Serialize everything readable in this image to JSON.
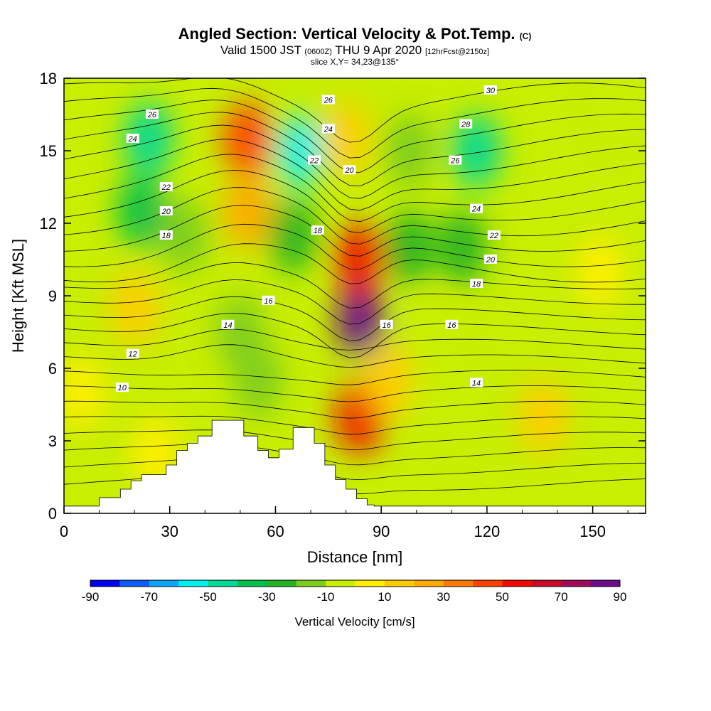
{
  "header": {
    "title": "Angled Section: Vertical Velocity & Pot.Temp.",
    "title_unit": "(C)",
    "valid_prefix": "Valid 1500 JST",
    "valid_zulu": "(0600Z)",
    "valid_date": "THU 9 Apr 2020",
    "forecast": "[12hrFcst@2150z]",
    "slice": "slice X,Y= 34,23@135°"
  },
  "colors": {
    "scale": [
      "#0000f0",
      "#0c5cff",
      "#0aa4ff",
      "#00f0f0",
      "#00d896",
      "#00c04c",
      "#22b222",
      "#7ccc1c",
      "#c8ee00",
      "#ffee00",
      "#ffcc00",
      "#ffaa00",
      "#ff7800",
      "#ff4200",
      "#f00a00",
      "#c80a28",
      "#a00a5a",
      "#6e0a8c"
    ],
    "terrain": "#ffffff",
    "contour": "#000000"
  },
  "chart_data": {
    "type": "heatmap",
    "xlabel": "Distance [nm]",
    "ylabel": "Height [Kft MSL]",
    "xlim": [
      0,
      165
    ],
    "ylim": [
      0,
      18
    ],
    "xticks": [
      "0",
      "30",
      "60",
      "90",
      "120",
      "150"
    ],
    "xtick_values": [
      0,
      30,
      60,
      90,
      120,
      150
    ],
    "yticks": [
      "0",
      "3",
      "6",
      "9",
      "12",
      "15",
      "18"
    ],
    "ytick_values": [
      0,
      3,
      6,
      9,
      12,
      15,
      18
    ],
    "colorbar": {
      "label": "Vertical Velocity [cm/s]",
      "min": -90,
      "max": 90,
      "step": 10,
      "tick_labels": [
        "-90",
        "-70",
        "-50",
        "-30",
        "-10",
        "10",
        "30",
        "50",
        "70",
        "90"
      ],
      "tick_values": [
        -90,
        -70,
        -50,
        -30,
        -10,
        10,
        30,
        50,
        70,
        90
      ]
    },
    "terrain_profile": {
      "x": [
        0,
        10,
        10,
        16,
        16,
        19,
        19,
        22,
        22,
        29,
        29,
        32,
        32,
        35,
        35,
        38,
        38,
        42,
        42,
        51,
        51,
        55,
        55,
        58,
        58,
        61,
        61,
        65,
        65,
        71,
        71,
        74,
        74,
        77,
        77,
        80,
        80,
        83,
        83,
        86,
        86,
        88,
        88,
        165
      ],
      "y": [
        0.3,
        0.3,
        0.65,
        0.65,
        1.0,
        1.0,
        1.35,
        1.35,
        1.6,
        1.6,
        2.0,
        2.0,
        2.6,
        2.6,
        2.9,
        2.9,
        3.2,
        3.2,
        3.85,
        3.85,
        3.2,
        3.2,
        2.6,
        2.6,
        2.3,
        2.3,
        2.65,
        2.65,
        3.55,
        3.55,
        2.9,
        2.9,
        2.0,
        2.0,
        1.4,
        1.4,
        1.0,
        1.0,
        0.6,
        0.6,
        0.35,
        0.35,
        0.3,
        0.3
      ]
    },
    "velocity_cells": [
      {
        "x": 24,
        "y": 15.5,
        "value": -45
      },
      {
        "x": 22,
        "y": 12.5,
        "value": -35
      },
      {
        "x": 34,
        "y": 11.5,
        "value": -15
      },
      {
        "x": 52,
        "y": 15.5,
        "value": 40
      },
      {
        "x": 52,
        "y": 12.5,
        "value": 25
      },
      {
        "x": 67,
        "y": 15,
        "value": -55
      },
      {
        "x": 65,
        "y": 11.5,
        "value": -25
      },
      {
        "x": 84,
        "y": 8,
        "value": 85
      },
      {
        "x": 84,
        "y": 10.5,
        "value": 55
      },
      {
        "x": 84,
        "y": 4,
        "value": 55
      },
      {
        "x": 80,
        "y": 15.5,
        "value": 15
      },
      {
        "x": 98,
        "y": 15,
        "value": -15
      },
      {
        "x": 98,
        "y": 11,
        "value": -25
      },
      {
        "x": 117,
        "y": 15,
        "value": -45
      },
      {
        "x": 113,
        "y": 11,
        "value": -25
      },
      {
        "x": 55,
        "y": 5.5,
        "value": -20
      },
      {
        "x": 50,
        "y": 7.5,
        "value": -15
      },
      {
        "x": 92,
        "y": 5.5,
        "value": 15
      },
      {
        "x": 104,
        "y": 7.5,
        "value": -10
      },
      {
        "x": 112,
        "y": 4.5,
        "value": -5
      },
      {
        "x": 136,
        "y": 4,
        "value": 15
      },
      {
        "x": 152,
        "y": 10,
        "value": 5
      },
      {
        "x": 158,
        "y": 17,
        "value": -5
      },
      {
        "x": 20,
        "y": 8.5,
        "value": 15
      },
      {
        "x": 5,
        "y": 5,
        "value": 5
      },
      {
        "x": 26,
        "y": 2.5,
        "value": 5
      }
    ],
    "contour_labels": [
      {
        "x": 25,
        "y": 16.5,
        "text": "26"
      },
      {
        "x": 19.5,
        "y": 15.5,
        "text": "24"
      },
      {
        "x": 29,
        "y": 13.5,
        "text": "22"
      },
      {
        "x": 29,
        "y": 12.5,
        "text": "20"
      },
      {
        "x": 29,
        "y": 11.5,
        "text": "18"
      },
      {
        "x": 58,
        "y": 8.8,
        "text": "16"
      },
      {
        "x": 46.5,
        "y": 7.8,
        "text": "14"
      },
      {
        "x": 19.5,
        "y": 6.6,
        "text": "12"
      },
      {
        "x": 16.5,
        "y": 5.2,
        "text": "10"
      },
      {
        "x": 75,
        "y": 17.1,
        "text": "26"
      },
      {
        "x": 75,
        "y": 15.9,
        "text": "24"
      },
      {
        "x": 71,
        "y": 14.6,
        "text": "22"
      },
      {
        "x": 81,
        "y": 14.2,
        "text": "20"
      },
      {
        "x": 72,
        "y": 11.7,
        "text": "18"
      },
      {
        "x": 91.5,
        "y": 7.8,
        "text": "16"
      },
      {
        "x": 121,
        "y": 17.5,
        "text": "30"
      },
      {
        "x": 114,
        "y": 16.1,
        "text": "28"
      },
      {
        "x": 111,
        "y": 14.6,
        "text": "26"
      },
      {
        "x": 117,
        "y": 12.6,
        "text": "24"
      },
      {
        "x": 122,
        "y": 11.5,
        "text": "22"
      },
      {
        "x": 121,
        "y": 10.5,
        "text": "20"
      },
      {
        "x": 117,
        "y": 9.5,
        "text": "18"
      },
      {
        "x": 110,
        "y": 7.8,
        "text": "16"
      },
      {
        "x": 117,
        "y": 5.4,
        "text": "14"
      }
    ]
  }
}
